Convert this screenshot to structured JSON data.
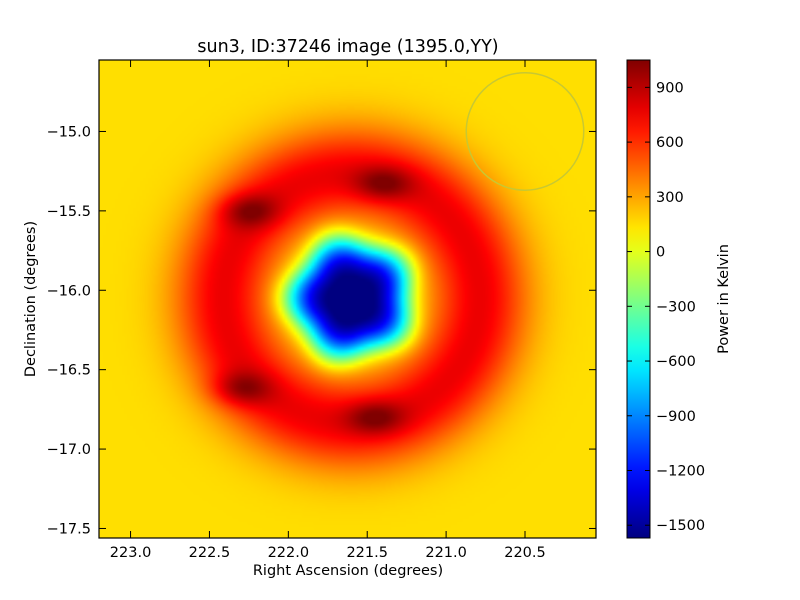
{
  "chart_data": {
    "type": "heatmap",
    "title": "sun3, ID:37246 image (1395.0,YY)",
    "xlabel": "Right Ascension (degrees)",
    "ylabel": "Declination (degrees)",
    "xlim": [
      223.2,
      220.05
    ],
    "ylim": [
      -17.56,
      -14.55
    ],
    "x_ticks": [
      223.0,
      222.5,
      222.0,
      221.5,
      221.0,
      220.5
    ],
    "x_tick_labels": [
      "223.0",
      "222.5",
      "222.0",
      "221.5",
      "221.0",
      "220.5"
    ],
    "y_ticks": [
      -15.0,
      -15.5,
      -16.0,
      -16.5,
      -17.0,
      -17.5
    ],
    "y_tick_labels": [
      "−15.0",
      "−15.5",
      "−16.0",
      "−16.5",
      "−17.0",
      "−17.5"
    ],
    "colorbar": {
      "label": "Power in Kelvin",
      "colormap": "jet",
      "min": -1570,
      "max": 1050,
      "ticks": [
        900,
        600,
        300,
        0,
        -300,
        -600,
        -900,
        -1200,
        -1500
      ],
      "tick_labels": [
        "900",
        "600",
        "300",
        "0",
        "−300",
        "−600",
        "−900",
        "−1200",
        "−1500"
      ]
    },
    "beam_circle": {
      "center": [
        220.5,
        -15.0
      ],
      "radius_deg": 0.37,
      "color": "#c8c832"
    },
    "field": {
      "description_values_kelvin": {
        "background": 150,
        "ring_level": 700,
        "center_min": -1550
      },
      "ring_center": [
        221.6,
        -16.05
      ],
      "hotspots": [
        {
          "ra": 221.4,
          "dec": -15.33,
          "value": 1000
        },
        {
          "ra": 222.25,
          "dec": -15.5,
          "value": 900
        },
        {
          "ra": 222.3,
          "dec": -16.62,
          "value": 900
        },
        {
          "ra": 221.45,
          "dec": -16.8,
          "value": 1000
        }
      ],
      "minimum": {
        "ra": 221.6,
        "dec": -16.07,
        "value": -1550
      }
    }
  }
}
